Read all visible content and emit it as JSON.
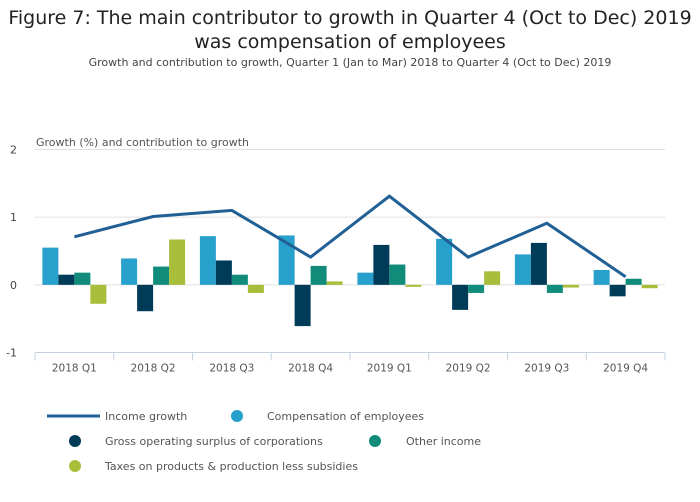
{
  "chart_data": {
    "type": "bar",
    "title": "Figure 7: The main contributor to growth in Quarter 4 (Oct to Dec) 2019 was compensation of employees",
    "subtitle": "Growth and contribution to growth, Quarter 1 (Jan to Mar) 2018 to Quarter 4 (Oct to Dec) 2019",
    "xlabel": "",
    "ylabel": "Growth (%) and contribution to growth",
    "ylim": [
      -1,
      2
    ],
    "yticks": [
      2,
      1,
      0,
      -1
    ],
    "grid": true,
    "legend_position": "bottom",
    "categories": [
      "2018 Q1",
      "2018 Q2",
      "2018 Q3",
      "2018 Q4",
      "2019 Q1",
      "2019 Q2",
      "2019 Q3",
      "2019 Q4"
    ],
    "line_series": {
      "name": "Income growth",
      "color": "#206095",
      "values": [
        0.71,
        1.01,
        1.1,
        0.41,
        1.31,
        0.41,
        0.91,
        0.12
      ]
    },
    "series": [
      {
        "name": "Compensation of employees",
        "color": "#27a0cc",
        "values": [
          0.55,
          0.39,
          0.72,
          0.73,
          0.18,
          0.68,
          0.45,
          0.22
        ]
      },
      {
        "name": "Gross operating surplus of corporations",
        "color": "#003c57",
        "values": [
          0.15,
          -0.39,
          0.36,
          -0.61,
          0.59,
          -0.37,
          0.62,
          -0.17
        ]
      },
      {
        "name": "Other income",
        "color": "#118c7b",
        "values": [
          0.18,
          0.27,
          0.15,
          0.28,
          0.3,
          -0.12,
          -0.12,
          0.09
        ]
      },
      {
        "name": "Taxes on products & production less subsidies",
        "color": "#a8bd3a",
        "values": [
          -0.28,
          0.67,
          -0.12,
          0.05,
          -0.03,
          0.2,
          -0.04,
          -0.05
        ]
      }
    ],
    "legend": [
      {
        "name": "Income growth",
        "marker": "line",
        "color": "#206095"
      },
      {
        "name": "Compensation of employees",
        "marker": "circle",
        "color": "#27a0cc"
      },
      {
        "name": "Gross operating surplus of corporations",
        "marker": "circle",
        "color": "#003c57"
      },
      {
        "name": "Other income",
        "marker": "circle",
        "color": "#118c7b"
      },
      {
        "name": "Taxes on products & production less subsidies",
        "marker": "circle",
        "color": "#a8bd3a"
      }
    ]
  }
}
